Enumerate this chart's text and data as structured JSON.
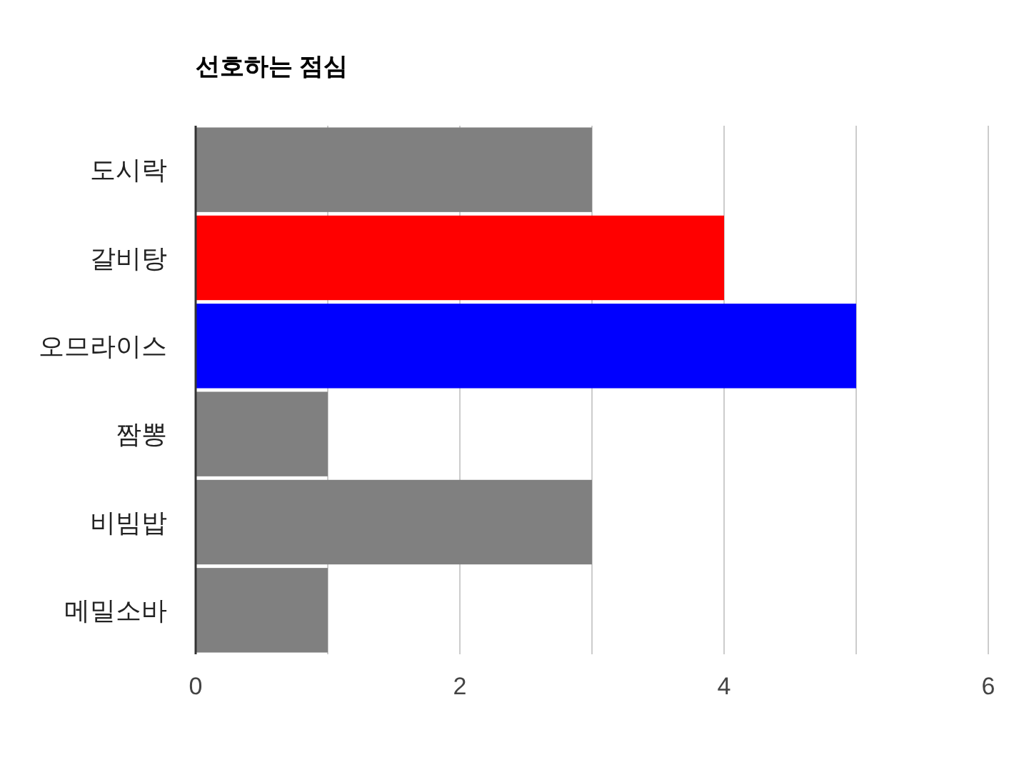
{
  "chart_data": {
    "type": "bar",
    "orientation": "horizontal",
    "title": "선호하는 점심",
    "categories": [
      "도시락",
      "갈비탕",
      "오므라이스",
      "짬뽕",
      "비빔밥",
      "메밀소바"
    ],
    "values": [
      3,
      4,
      5,
      1,
      3,
      1
    ],
    "colors": [
      "#808080",
      "#ff0000",
      "#0000ff",
      "#808080",
      "#808080",
      "#808080"
    ],
    "xlim": [
      0,
      6
    ],
    "xticks": [
      0,
      {
        "value": 1,
        "label": null
      },
      2,
      {
        "value": 3,
        "label": null
      },
      4,
      {
        "value": 5,
        "label": null
      },
      6
    ],
    "grid": "x"
  }
}
